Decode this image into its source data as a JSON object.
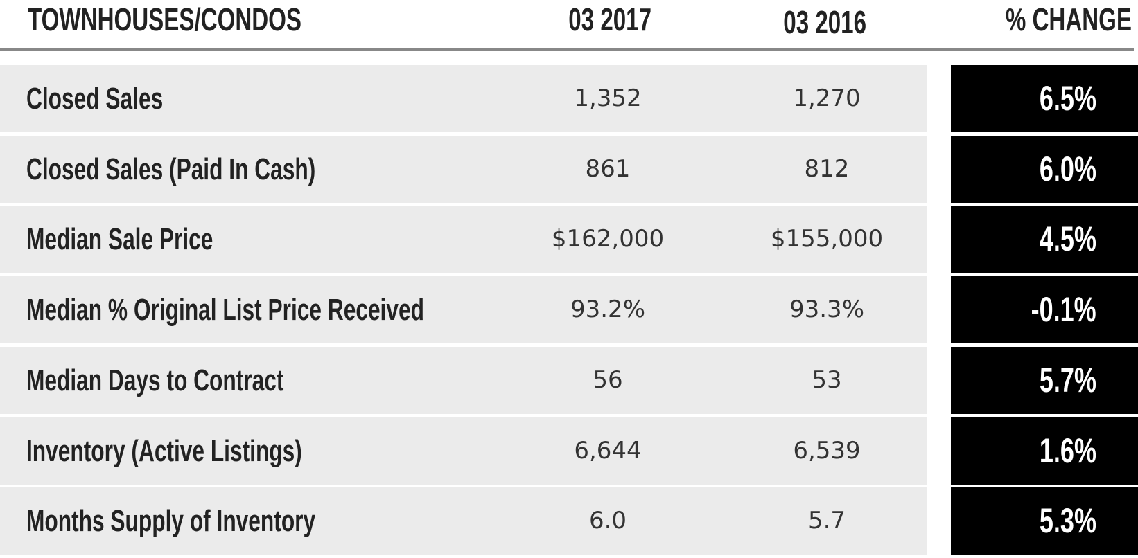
{
  "table": {
    "header": [
      "TOWNHOUSES/CONDOS",
      "03 2017",
      "03 2016",
      "% CHANGE"
    ],
    "rows": [
      [
        "Closed Sales",
        "1,352",
        "1,270",
        "6.5%"
      ],
      [
        "Closed Sales (Paid In Cash)",
        "861",
        "812",
        "6.0%"
      ],
      [
        "Median Sale Price",
        "$162,000",
        "$155,000",
        "4.5%"
      ],
      [
        "Median % Original List Price Received",
        "93.2%",
        "93.3%",
        "-0.1%"
      ],
      [
        "Median Days to Contract",
        "56",
        "53",
        "5.7%"
      ],
      [
        "Inventory (Active Listings)",
        "6,644",
        "6,539",
        "1.6%"
      ],
      [
        "Months Supply of Inventory",
        "6.0",
        "5.7",
        "5.3%"
      ]
    ]
  }
}
